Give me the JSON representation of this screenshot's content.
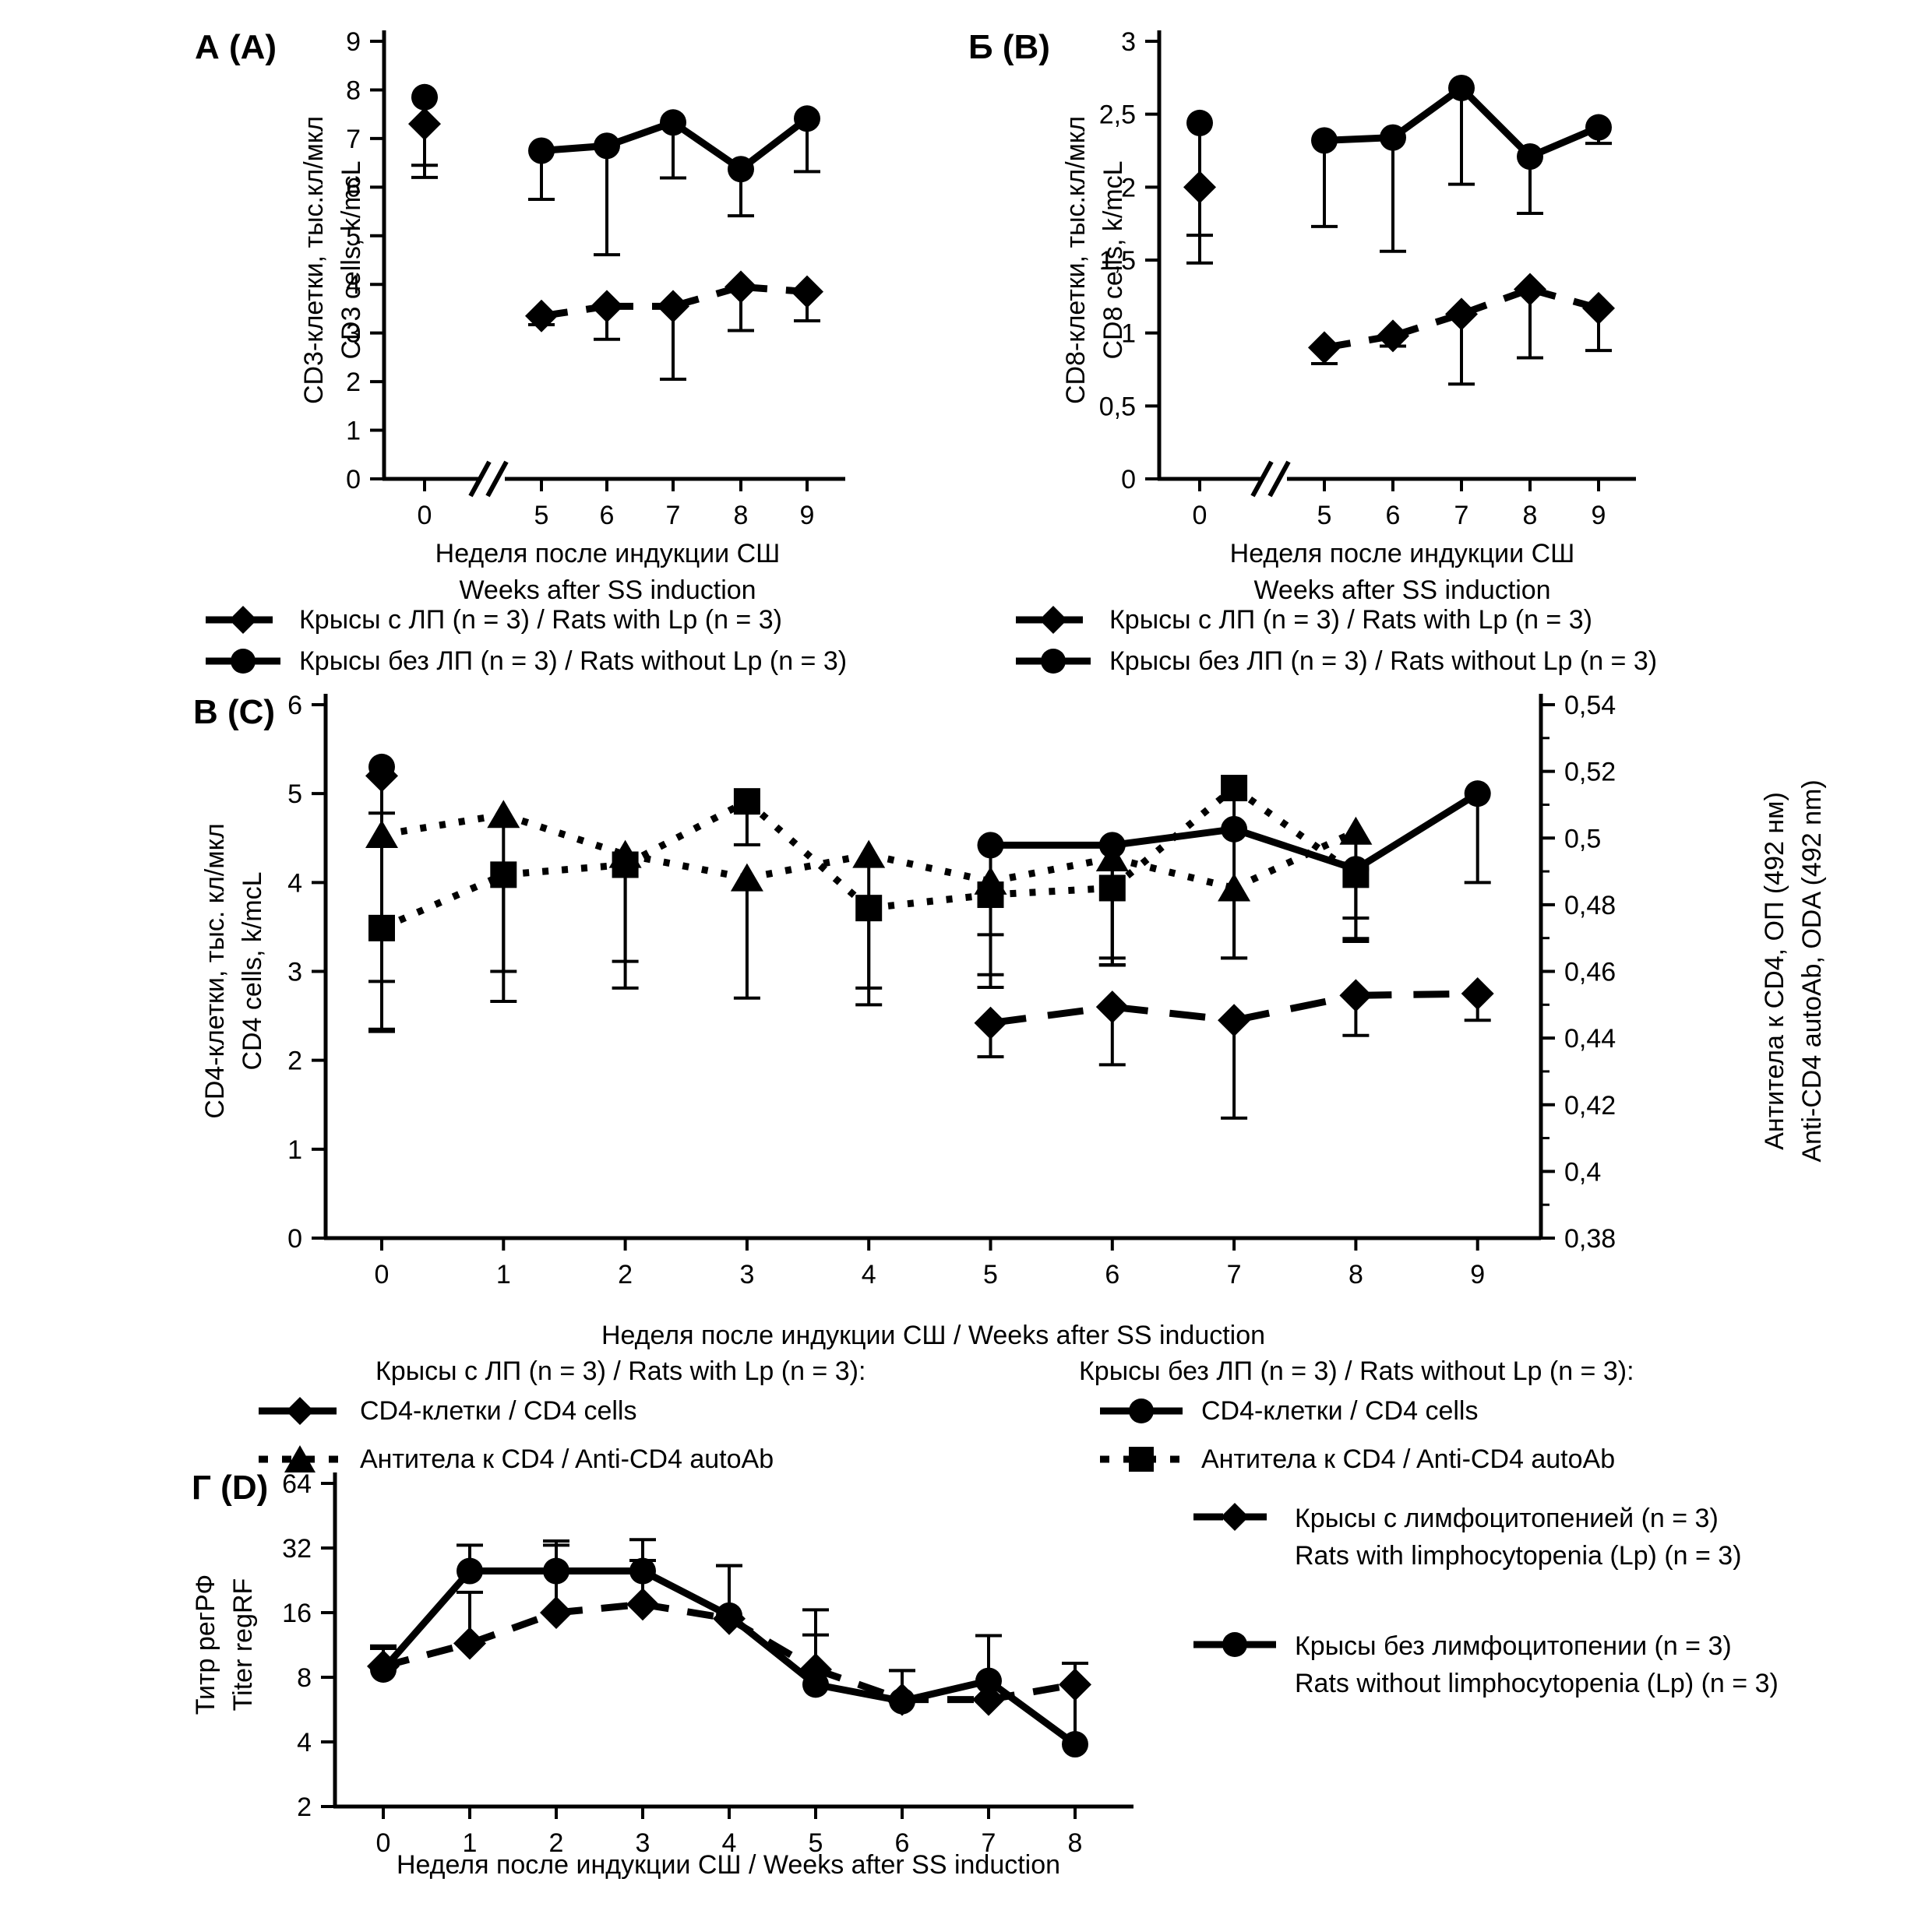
{
  "figure": {
    "background": "#ffffff",
    "ink": "#000000"
  },
  "chart_data": [
    {
      "key": "A",
      "type": "line",
      "panel_label": "А (A)",
      "x_axis": {
        "title_line1": "Неделя после индукции СШ",
        "title_line2": "Weeks after SS induction",
        "categories": [
          "0",
          "5",
          "6",
          "7",
          "8",
          "9"
        ],
        "axis_break_after_week0": true
      },
      "y_axis": {
        "title_line1": "CD3-клетки, тыс.кл/мкл",
        "title_line2": "CD3 cells, k/mcL",
        "min": 0,
        "max": 9,
        "tick_values": [
          0,
          1,
          2,
          3,
          4,
          5,
          6,
          7,
          8,
          9
        ],
        "tick_labels": [
          "0",
          "1",
          "2",
          "3",
          "4",
          "5",
          "6",
          "7",
          "8",
          "9"
        ]
      },
      "series": [
        {
          "id": "rats-with-lp",
          "marker": "diamond",
          "line_style": "dashed",
          "axis": "left",
          "values": [
            7.3,
            3.35,
            3.55,
            3.55,
            3.95,
            3.85
          ],
          "err_low": [
            1.1,
            0.18,
            0.68,
            1.5,
            0.9,
            0.6
          ]
        },
        {
          "id": "rats-without-lp",
          "marker": "circle",
          "line_style": "solid",
          "axis": "left",
          "values": [
            7.85,
            6.75,
            6.85,
            7.33,
            6.37,
            7.41
          ],
          "err_low": [
            1.4,
            1.0,
            2.24,
            1.14,
            0.96,
            1.09
          ]
        }
      ],
      "legend": [
        {
          "marker": "diamond",
          "line_style": "dashed",
          "label": "Крысы с ЛП (n = 3) / Rats with Lp (n = 3)"
        },
        {
          "marker": "circle",
          "line_style": "solid",
          "label": "Крысы без ЛП (n = 3) / Rats without Lp (n = 3)"
        }
      ]
    },
    {
      "key": "B",
      "type": "line",
      "panel_label": "Б (B)",
      "x_axis": {
        "title_line1": "Неделя после индукции СШ",
        "title_line2": "Weeks after SS induction",
        "categories": [
          "0",
          "5",
          "6",
          "7",
          "8",
          "9"
        ],
        "axis_break_after_week0": true
      },
      "y_axis": {
        "title_line1": "CD8-клетки, тыс.кл/мкл",
        "title_line2": "CD8 cells, k/mcL",
        "min": 0,
        "max": 3,
        "tick_values": [
          0,
          0.5,
          1,
          1.5,
          2,
          2.5,
          3
        ],
        "tick_labels": [
          "0",
          "0,5",
          "1",
          "1,5",
          "2",
          "2,5",
          "3"
        ]
      },
      "series": [
        {
          "id": "rats-with-lp",
          "marker": "diamond",
          "line_style": "dashed",
          "axis": "left",
          "values": [
            2.0,
            0.9,
            0.98,
            1.13,
            1.3,
            1.17
          ],
          "err_low": [
            0.52,
            0.11,
            0.07,
            0.48,
            0.47,
            0.29
          ]
        },
        {
          "id": "rats-without-lp",
          "marker": "circle",
          "line_style": "solid",
          "axis": "left",
          "values": [
            2.44,
            2.32,
            2.34,
            2.68,
            2.21,
            2.41
          ],
          "err_low": [
            0.77,
            0.59,
            0.78,
            0.66,
            0.39,
            0.11
          ]
        }
      ],
      "legend": [
        {
          "marker": "diamond",
          "line_style": "dashed",
          "label": "Крысы с ЛП (n = 3) / Rats with Lp (n = 3)"
        },
        {
          "marker": "circle",
          "line_style": "solid",
          "label": "Крысы без ЛП (n = 3) / Rats without Lp (n = 3)"
        }
      ]
    },
    {
      "key": "C",
      "type": "line",
      "panel_label": "В (C)",
      "x_axis": {
        "title_line1": "Неделя после индукции СШ / Weeks after SS induction",
        "title_line2": "",
        "categories": [
          "0",
          "1",
          "2",
          "3",
          "4",
          "5",
          "6",
          "7",
          "8",
          "9"
        ],
        "axis_break_after_week0": false
      },
      "y_axis": {
        "title_line1": "CD4-клетки, тыс. кл/мкл",
        "title_line2": "CD4 cells, k/mcL",
        "min": 0,
        "max": 6,
        "tick_values": [
          0,
          1,
          2,
          3,
          4,
          5,
          6
        ],
        "tick_labels": [
          "0",
          "1",
          "2",
          "3",
          "4",
          "5",
          "6"
        ]
      },
      "y_axis_right": {
        "title_line1": "Антитела к CD4, ОП (492 нм)",
        "title_line2": "Anti-CD4 autoAb, ODA (492 nm)",
        "min": 0.38,
        "max": 0.54,
        "tick_values": [
          0.38,
          0.4,
          0.42,
          0.44,
          0.46,
          0.48,
          0.5,
          0.52,
          0.54
        ],
        "tick_labels": [
          "0,38",
          "0,4",
          "0,42",
          "0,44",
          "0,46",
          "0,48",
          "0,5",
          "0,52",
          "0,54"
        ],
        "minor_tick_values": [
          0.39,
          0.41,
          0.43,
          0.45,
          0.47,
          0.49,
          0.51,
          0.53
        ]
      },
      "series": [
        {
          "id": "cd4-with-lp",
          "marker": "diamond",
          "line_style": "dashed",
          "axis": "left",
          "values": [
            5.2,
            null,
            null,
            null,
            null,
            2.42,
            2.6,
            2.45,
            2.73,
            2.75
          ],
          "err_low": [
            2.85,
            null,
            null,
            null,
            null,
            0.38,
            0.65,
            1.1,
            0.45,
            0.3
          ]
        },
        {
          "id": "cd4-without-lp",
          "marker": "circle",
          "line_style": "solid",
          "axis": "left",
          "values": [
            5.3,
            null,
            null,
            null,
            null,
            4.42,
            4.42,
            4.6,
            4.15,
            5.0
          ],
          "err_low": [
            0.52,
            null,
            null,
            null,
            null,
            1.6,
            1.35,
            1.45,
            0.78,
            1.0
          ]
        },
        {
          "id": "anti-cd4-with-lp",
          "marker": "triangle",
          "line_style": "dotted",
          "axis": "right",
          "values": [
            0.501,
            0.507,
            0.495,
            0.488,
            0.495,
            0.487,
            0.494,
            0.485,
            0.502,
            null
          ],
          "err_low": [
            0.044,
            0.056,
            0.032,
            0.036,
            0.04,
            0.028,
            0.03,
            0.021,
            0.026,
            null
          ]
        },
        {
          "id": "anti-cd4-without-lp",
          "marker": "square",
          "line_style": "dotted",
          "axis": "right",
          "values": [
            0.473,
            0.489,
            0.492,
            0.511,
            0.479,
            0.483,
            0.485,
            0.515,
            0.489,
            null
          ],
          "err_low": [
            0.031,
            0.029,
            0.037,
            0.013,
            0.029,
            0.012,
            0.023,
            0.013,
            0.02,
            null
          ]
        }
      ],
      "legend_groups": [
        {
          "header": "Крысы с ЛП (n = 3) / Rats with Lp (n = 3):",
          "items": [
            {
              "marker": "diamond",
              "line_style": "dashed",
              "label": "CD4-клетки / CD4 cells"
            },
            {
              "marker": "triangle",
              "line_style": "dotted",
              "label": "Антитела к CD4 / Anti-CD4 autoAb"
            }
          ]
        },
        {
          "header": "Крысы без ЛП (n = 3) / Rats without Lp (n = 3):",
          "items": [
            {
              "marker": "circle",
              "line_style": "solid",
              "label": "CD4-клетки / CD4 cells"
            },
            {
              "marker": "square",
              "line_style": "dotted",
              "label": "Антитела к CD4 / Anti-CD4 autoAb"
            }
          ]
        }
      ]
    },
    {
      "key": "D",
      "type": "line",
      "panel_label": "Г (D)",
      "x_axis": {
        "title_line1": "Неделя после индукции СШ / Weeks after SS induction",
        "title_line2": "",
        "categories": [
          "0",
          "1",
          "2",
          "3",
          "4",
          "5",
          "6",
          "7",
          "8"
        ],
        "axis_break_after_week0": false
      },
      "y_axis": {
        "title_line1": "Титр регРФ",
        "title_line2": "Titer regRF",
        "scale": "log2",
        "min": 2,
        "max": 64,
        "tick_values": [
          2,
          4,
          8,
          16,
          32,
          64
        ],
        "tick_labels": [
          "2",
          "4",
          "8",
          "16",
          "32",
          "64"
        ]
      },
      "series": [
        {
          "id": "rats-with-lymphocytopenia",
          "marker": "diamond",
          "line_style": "dashed",
          "axis": "left",
          "values": [
            9,
            11.5,
            16,
            17.5,
            15,
            8.7,
            6.3,
            6.3,
            7.4
          ],
          "err_up": [
            2.2,
            8.4,
            17,
            10.5,
            11.5,
            7.8,
            2.3,
            null,
            1.9
          ]
        },
        {
          "id": "rats-without-lymphocytopenia",
          "marker": "circle",
          "line_style": "solid",
          "axis": "left",
          "values": [
            8.7,
            25,
            25,
            25,
            15.5,
            7.4,
            6.2,
            7.7,
            3.9
          ],
          "err_up": [
            2.2,
            8,
            9.5,
            10,
            11,
            5.2,
            2.4,
            4.8,
            5.4
          ]
        }
      ],
      "legend": [
        {
          "marker": "diamond",
          "line_style": "dashed",
          "label_line1": "Крысы с лимфоцитопенией (n = 3)",
          "label_line2": "Rats with limphocytopenia (Lp) (n = 3)"
        },
        {
          "marker": "circle",
          "line_style": "solid",
          "label_line1": "Крысы без лимфоцитопении (n = 3)",
          "label_line2": "Rats without limphocytopenia (Lp) (n = 3)"
        }
      ]
    }
  ]
}
